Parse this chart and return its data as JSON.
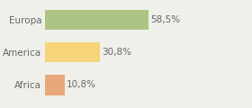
{
  "categories": [
    "Europa",
    "America",
    "Africa"
  ],
  "values": [
    58.5,
    30.8,
    10.8
  ],
  "labels": [
    "58,5%",
    "30,8%",
    "10,8%"
  ],
  "bar_colors": [
    "#aec484",
    "#f5d47a",
    "#e8a87c"
  ],
  "background_color": "#f0f0eb",
  "xlim": [
    0,
    100
  ],
  "bar_height": 0.62,
  "label_fontsize": 7.5,
  "tick_fontsize": 7.5,
  "text_color": "#666666",
  "figsize": [
    2.8,
    1.2
  ],
  "dpi": 100
}
